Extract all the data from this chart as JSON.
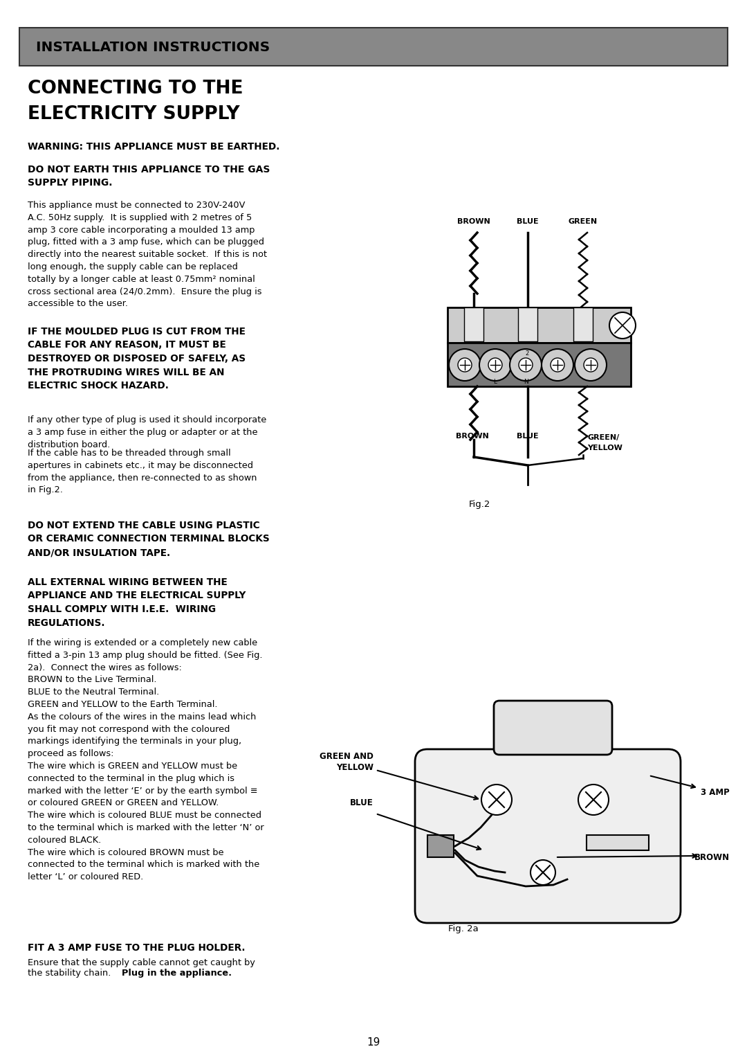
{
  "page_bg": "#ffffff",
  "header_bg": "#888888",
  "header_text": "INSTALLATION INSTRUCTIONS",
  "title_line1": "CONNECTING TO THE",
  "title_line2": "ELECTRICITY SUPPLY",
  "warning": "WARNING: THIS APPLIANCE MUST BE EARTHED.",
  "s1_bold": "DO NOT EARTH THIS APPLIANCE TO THE GAS\nSUPPLY PIPING.",
  "s1_body": "This appliance must be connected to 230V-240V\nA.C. 50Hz supply.  It is supplied with 2 metres of 5\namp 3 core cable incorporating a moulded 13 amp\nplug, fitted with a 3 amp fuse, which can be plugged\ndirectly into the nearest suitable socket.  If this is not\nlong enough, the supply cable can be replaced\ntotally by a longer cable at least 0.75mm² nominal\ncross sectional area (24/0.2mm).  Ensure the plug is\naccessible to the user.",
  "s2_bold": "IF THE MOULDED PLUG IS CUT FROM THE\nCABLE FOR ANY REASON, IT MUST BE\nDESTROYED OR DISPOSED OF SAFELY, AS\nTHE PROTRUDING WIRES WILL BE AN\nELECTRIC SHOCK HAZARD.",
  "s3_body1": "If any other type of plug is used it should incorporate\na 3 amp fuse in either the plug or adapter or at the\ndistribution board.",
  "s3_body2": "If the cable has to be threaded through small\napertures in cabinets etc., it may be disconnected\nfrom the appliance, then re-connected to as shown\nin Fig.2.",
  "fig2_caption": "Fig.2",
  "s4_bold": "DO NOT EXTEND THE CABLE USING PLASTIC\nOR CERAMIC CONNECTION TERMINAL BLOCKS\nAND/OR INSULATION TAPE.",
  "s5_bold": "ALL EXTERNAL WIRING BETWEEN THE\nAPPLIANCE AND THE ELECTRICAL SUPPLY\nSHALL COMPLY WITH I.E.E.  WIRING\nREGULATIONS.",
  "s5_body": "If the wiring is extended or a completely new cable\nfitted a 3-pin 13 amp plug should be fitted. (See Fig.\n2a).  Connect the wires as follows:\nBROWN to the Live Terminal.\nBLUE to the Neutral Terminal.\nGREEN and YELLOW to the Earth Terminal.\nAs the colours of the wires in the mains lead which\nyou fit may not correspond with the coloured\nmarkings identifying the terminals in your plug,\nproceed as follows:\nThe wire which is GREEN and YELLOW must be\nconnected to the terminal in the plug which is\nmarked with the letter ‘E’ or by the earth symbol ≡\nor coloured GREEN or GREEN and YELLOW.\nThe wire which is coloured BLUE must be connected\nto the terminal which is marked with the letter ‘N’ or\ncoloured BLACK.\nThe wire which is coloured BROWN must be\nconnected to the terminal which is marked with the\nletter ‘L’ or coloured RED.",
  "fig2a_caption": "Fig. 2a",
  "s6_bold": "FIT A 3 AMP FUSE TO THE PLUG HOLDER.",
  "s6_body_reg": "Ensure that the supply cable cannot get caught by\nthe stability chain.  ",
  "s6_body_bold": "Plug in the appliance.",
  "page_num": "19"
}
